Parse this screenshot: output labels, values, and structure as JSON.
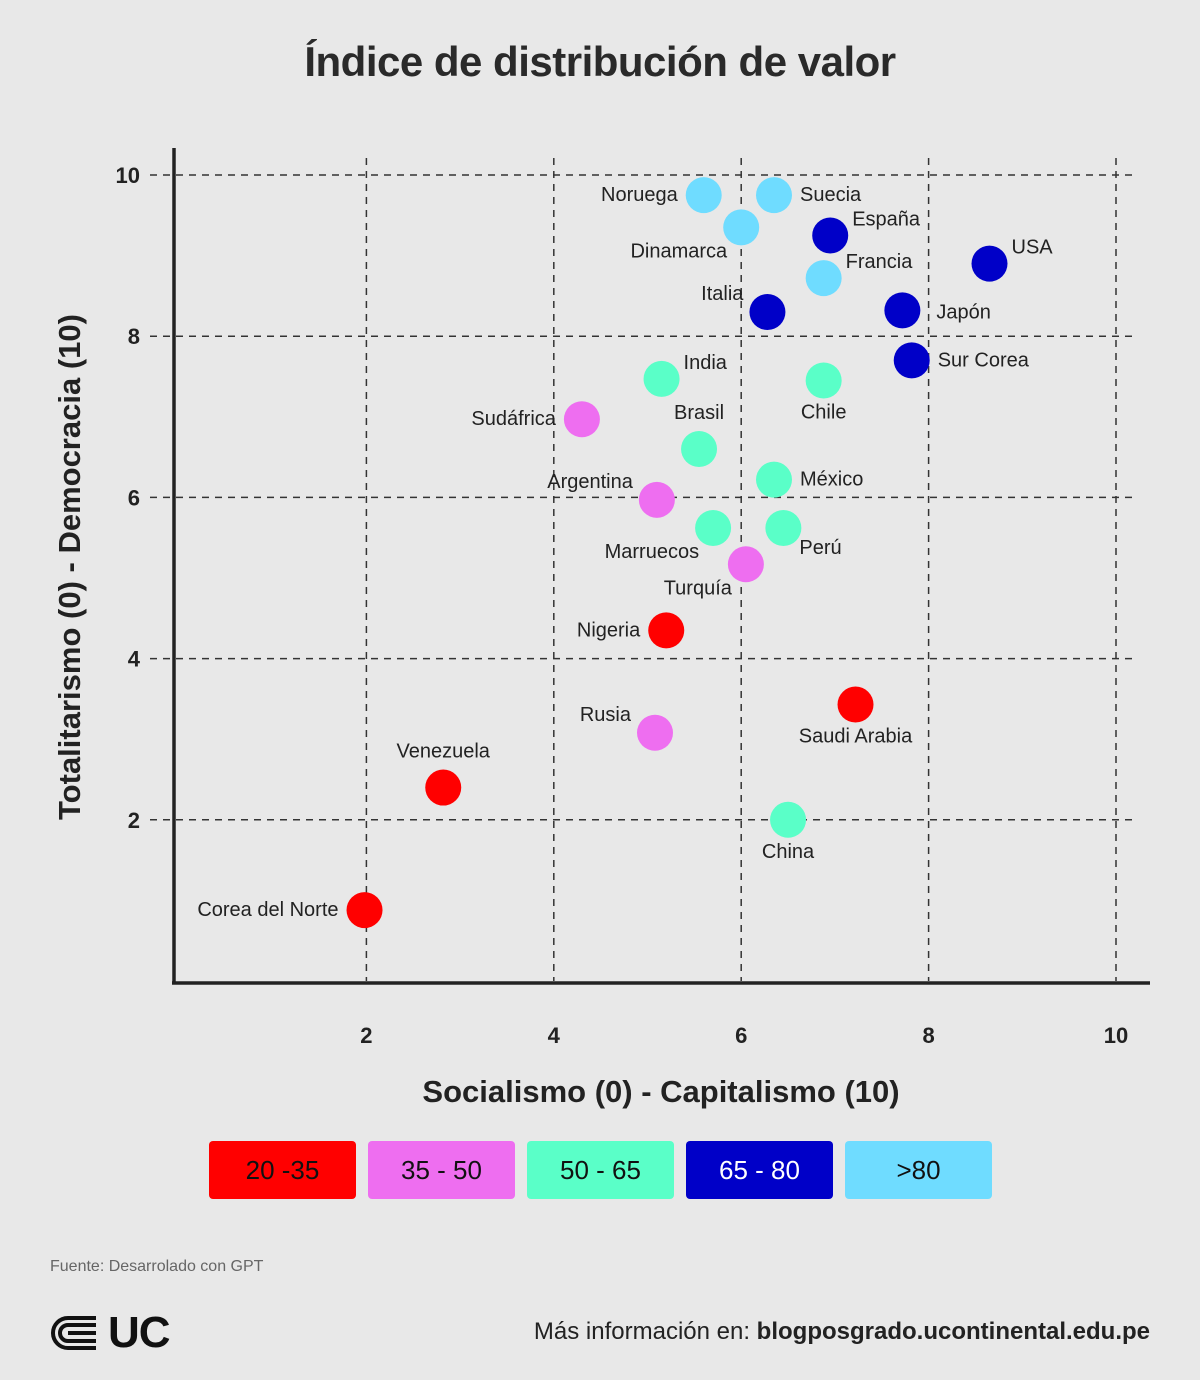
{
  "chart_data": {
    "type": "scatter",
    "title": "Índice de distribución de valor",
    "xlabel": "Socialismo (0) - Capitalismo (10)",
    "ylabel": "Totalitarismo (0) - Democracia (10)",
    "xlim": [
      0,
      10
    ],
    "ylim": [
      0,
      10
    ],
    "xticks": [
      2,
      4,
      6,
      8,
      10
    ],
    "yticks": [
      2,
      4,
      6,
      8,
      10
    ],
    "grid": true,
    "points": [
      {
        "label": "Noruega",
        "x": 5.6,
        "y": 9.75,
        "group": ">80",
        "label_pos": "left"
      },
      {
        "label": "Suecia",
        "x": 6.35,
        "y": 9.75,
        "group": ">80",
        "label_pos": "right"
      },
      {
        "label": "Dinamarca",
        "x": 6.0,
        "y": 9.35,
        "group": ">80",
        "label_pos": "below-left"
      },
      {
        "label": "España",
        "x": 6.95,
        "y": 9.25,
        "group": "65 - 80",
        "label_pos": "upper-right"
      },
      {
        "label": "USA",
        "x": 8.65,
        "y": 8.9,
        "group": "65 - 80",
        "label_pos": "upper-right"
      },
      {
        "label": "Francia",
        "x": 6.88,
        "y": 8.72,
        "group": ">80",
        "label_pos": "upper-right"
      },
      {
        "label": "Italia",
        "x": 6.28,
        "y": 8.3,
        "group": "65 - 80",
        "label_pos": "upper-left"
      },
      {
        "label": "Japón",
        "x": 7.72,
        "y": 8.32,
        "group": "65 - 80",
        "label_pos": "right-far"
      },
      {
        "label": "Sur Corea",
        "x": 7.82,
        "y": 7.7,
        "group": "65 - 80",
        "label_pos": "right"
      },
      {
        "label": "India",
        "x": 5.15,
        "y": 7.47,
        "group": "50 - 65",
        "label_pos": "upper-right"
      },
      {
        "label": "Chile",
        "x": 6.88,
        "y": 7.45,
        "group": "50 - 65",
        "label_pos": "below"
      },
      {
        "label": "Sudáfrica",
        "x": 4.3,
        "y": 6.97,
        "group": "35 - 50",
        "label_pos": "left"
      },
      {
        "label": "Brasil",
        "x": 5.55,
        "y": 6.6,
        "group": "50 - 65",
        "label_pos": "above"
      },
      {
        "label": "Argentina",
        "x": 5.1,
        "y": 5.97,
        "group": "35 - 50",
        "label_pos": "upper-left"
      },
      {
        "label": "México",
        "x": 6.35,
        "y": 6.22,
        "group": "50 - 65",
        "label_pos": "right"
      },
      {
        "label": "Marruecos",
        "x": 5.7,
        "y": 5.62,
        "group": "50 - 65",
        "label_pos": "below-left"
      },
      {
        "label": "Perú",
        "x": 6.45,
        "y": 5.62,
        "group": "50 - 65",
        "label_pos": "below-right"
      },
      {
        "label": "Turquía",
        "x": 6.05,
        "y": 5.17,
        "group": "35 - 50",
        "label_pos": "below-left"
      },
      {
        "label": "Nigeria",
        "x": 5.2,
        "y": 4.35,
        "group": "20 -35",
        "label_pos": "left"
      },
      {
        "label": "Saudi Arabia",
        "x": 7.22,
        "y": 3.43,
        "group": "20 -35",
        "label_pos": "below"
      },
      {
        "label": "Rusia",
        "x": 5.08,
        "y": 3.08,
        "group": "35 - 50",
        "label_pos": "upper-left"
      },
      {
        "label": "Venezuela",
        "x": 2.82,
        "y": 2.4,
        "group": "20 -35",
        "label_pos": "above"
      },
      {
        "label": "China",
        "x": 6.5,
        "y": 2.0,
        "group": "50 - 65",
        "label_pos": "below"
      },
      {
        "label": "Corea del Norte",
        "x": 1.98,
        "y": 0.88,
        "group": "20 -35",
        "label_pos": "left"
      }
    ],
    "legend": [
      {
        "label": "20 -35",
        "color": "#ff0000"
      },
      {
        "label": "35 - 50",
        "color": "#ee6ef0"
      },
      {
        "label": "50 - 65",
        "color": "#5affc8"
      },
      {
        "label": "65 - 80",
        "color": "#0000c8"
      },
      {
        "label": ">80",
        "color": "#6fdcff"
      }
    ]
  },
  "footer": {
    "source": "Fuente: Desarrolado con GPT",
    "logo_text": "UC",
    "info_prefix": "Más información en: ",
    "info_url": "blogposgrado.ucontinental.edu.pe"
  }
}
